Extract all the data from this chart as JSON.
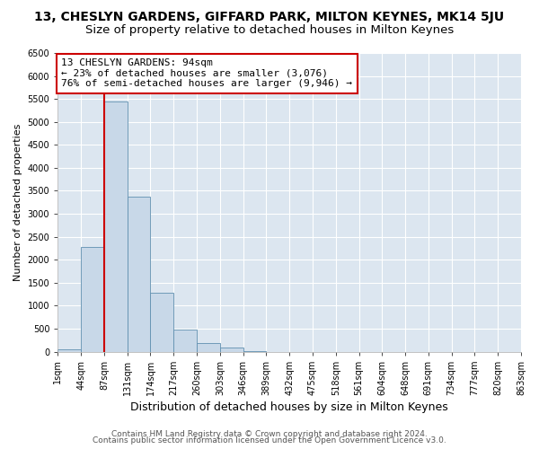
{
  "title": "13, CHESLYN GARDENS, GIFFARD PARK, MILTON KEYNES, MK14 5JU",
  "subtitle": "Size of property relative to detached houses in Milton Keynes",
  "xlabel": "Distribution of detached houses by size in Milton Keynes",
  "ylabel": "Number of detached properties",
  "bar_values": [
    50,
    2270,
    5440,
    3380,
    1280,
    470,
    185,
    80,
    10,
    0,
    0,
    0,
    0,
    0,
    0,
    0,
    0,
    0,
    0,
    0
  ],
  "bin_labels": [
    "1sqm",
    "44sqm",
    "87sqm",
    "131sqm",
    "174sqm",
    "217sqm",
    "260sqm",
    "303sqm",
    "346sqm",
    "389sqm",
    "432sqm",
    "475sqm",
    "518sqm",
    "561sqm",
    "604sqm",
    "648sqm",
    "691sqm",
    "734sqm",
    "777sqm",
    "820sqm",
    "863sqm"
  ],
  "bar_color": "#c8d8e8",
  "bar_edge_color": "#6090b0",
  "vline_x": 2,
  "vline_color": "#cc0000",
  "annotation_box_text": "13 CHESLYN GARDENS: 94sqm\n← 23% of detached houses are smaller (3,076)\n76% of semi-detached houses are larger (9,946) →",
  "annotation_box_color": "#cc0000",
  "ylim": [
    0,
    6500
  ],
  "yticks": [
    0,
    500,
    1000,
    1500,
    2000,
    2500,
    3000,
    3500,
    4000,
    4500,
    5000,
    5500,
    6000,
    6500
  ],
  "footer_line1": "Contains HM Land Registry data © Crown copyright and database right 2024.",
  "footer_line2": "Contains public sector information licensed under the Open Government Licence v3.0.",
  "fig_bg_color": "#ffffff",
  "plot_bg_color": "#dce6f0",
  "grid_color": "#ffffff",
  "title_fontsize": 10,
  "subtitle_fontsize": 9.5,
  "xlabel_fontsize": 9,
  "ylabel_fontsize": 8,
  "tick_fontsize": 7,
  "footer_fontsize": 6.5,
  "annotation_fontsize": 8
}
